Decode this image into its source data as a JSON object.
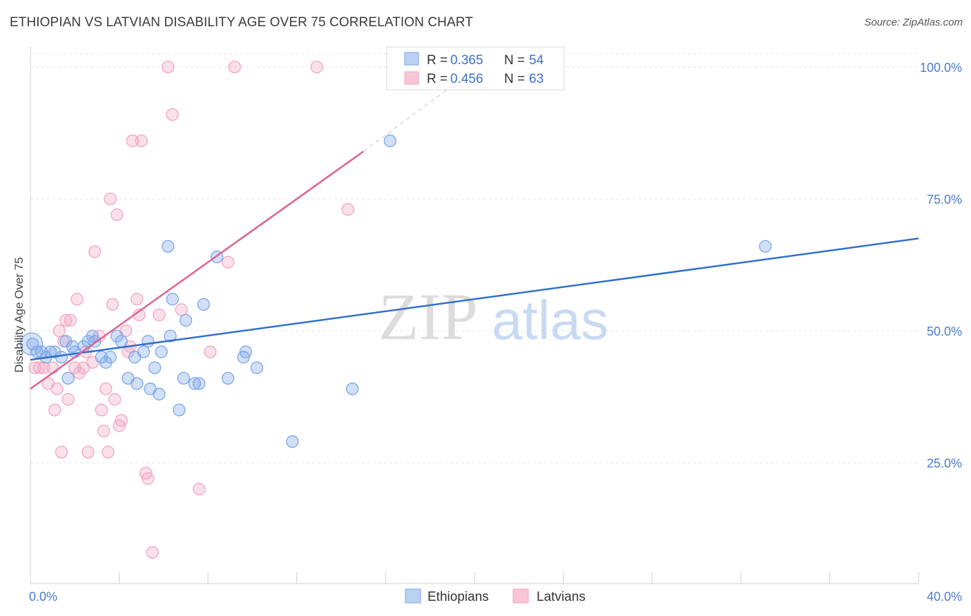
{
  "title": "ETHIOPIAN VS LATVIAN DISABILITY AGE OVER 75 CORRELATION CHART",
  "source": "Source: ZipAtlas.com",
  "watermark": {
    "zip": "ZIP",
    "atlas": "atlas"
  },
  "colors": {
    "ethiopians": "#7aa6e8",
    "ethiopians_line": "#2f6fcf",
    "latvians": "#f2a6bf",
    "latvians_line": "#e0608e",
    "tick_text": "#4a7bd0"
  },
  "legend": {
    "r_label": "R =",
    "n_label": "N =",
    "rows": [
      {
        "r": "0.365",
        "n": "54"
      },
      {
        "r": "0.456",
        "n": "63"
      }
    ]
  },
  "chart_data": {
    "type": "scatter",
    "title": "ETHIOPIAN VS LATVIAN DISABILITY AGE OVER 75 CORRELATION CHART",
    "xlabel": "",
    "ylabel": "Disability Age Over 75",
    "xlim": [
      0,
      40
    ],
    "ylim": [
      0,
      105
    ],
    "x_tick_labels": [
      "0.0%",
      "40.0%"
    ],
    "y_ticks": [
      25,
      50,
      75,
      100
    ],
    "y_tick_labels": [
      "25.0%",
      "50.0%",
      "75.0%",
      "100.0%"
    ],
    "grid": true,
    "legend_position": "top-center",
    "series": [
      {
        "name": "Ethiopians",
        "r": 0.365,
        "n": 54,
        "trend": {
          "x0": 0,
          "y0": 44.5,
          "x1": 40,
          "y1": 67.5
        },
        "points": [
          [
            0.1,
            47.5
          ],
          [
            0.3,
            46
          ],
          [
            0.5,
            46
          ],
          [
            0.7,
            45
          ],
          [
            0.9,
            46
          ],
          [
            1.1,
            46
          ],
          [
            1.4,
            45
          ],
          [
            1.6,
            48
          ],
          [
            1.7,
            41
          ],
          [
            1.9,
            47
          ],
          [
            2.0,
            46
          ],
          [
            2.4,
            47
          ],
          [
            2.6,
            48
          ],
          [
            2.8,
            49
          ],
          [
            2.9,
            48
          ],
          [
            3.2,
            45
          ],
          [
            3.4,
            44
          ],
          [
            3.6,
            45
          ],
          [
            3.9,
            49
          ],
          [
            4.1,
            48
          ],
          [
            4.4,
            41
          ],
          [
            4.7,
            45
          ],
          [
            4.8,
            40
          ],
          [
            5.1,
            46
          ],
          [
            5.3,
            48
          ],
          [
            5.4,
            39
          ],
          [
            5.6,
            43
          ],
          [
            5.8,
            38
          ],
          [
            5.9,
            46
          ],
          [
            6.2,
            66
          ],
          [
            6.3,
            49
          ],
          [
            6.4,
            56
          ],
          [
            6.7,
            35
          ],
          [
            6.9,
            41
          ],
          [
            7.0,
            52
          ],
          [
            7.4,
            40
          ],
          [
            7.6,
            40
          ],
          [
            7.8,
            55
          ],
          [
            8.4,
            64
          ],
          [
            8.9,
            41
          ],
          [
            9.6,
            45
          ],
          [
            9.7,
            46
          ],
          [
            10.2,
            43
          ],
          [
            11.8,
            29
          ],
          [
            14.5,
            39
          ],
          [
            16.2,
            86
          ],
          [
            33.1,
            66
          ]
        ]
      },
      {
        "name": "Latvians",
        "r": 0.456,
        "n": 63,
        "trend": {
          "x0": 0,
          "y0": 39,
          "x1": 15,
          "y1": 84,
          "dash_x1": 19.5,
          "dash_y1": 98
        },
        "points": [
          [
            0.2,
            43
          ],
          [
            0.4,
            43
          ],
          [
            0.6,
            43
          ],
          [
            0.8,
            40
          ],
          [
            1.0,
            43
          ],
          [
            1.1,
            35
          ],
          [
            1.2,
            39
          ],
          [
            1.3,
            50
          ],
          [
            1.4,
            27
          ],
          [
            1.5,
            48
          ],
          [
            1.6,
            52
          ],
          [
            1.7,
            37
          ],
          [
            1.8,
            52
          ],
          [
            2.0,
            43
          ],
          [
            2.1,
            56
          ],
          [
            2.2,
            42
          ],
          [
            2.4,
            43
          ],
          [
            2.5,
            46
          ],
          [
            2.6,
            27
          ],
          [
            2.8,
            44
          ],
          [
            2.9,
            65
          ],
          [
            3.1,
            49
          ],
          [
            3.2,
            35
          ],
          [
            3.3,
            31
          ],
          [
            3.4,
            39
          ],
          [
            3.5,
            27
          ],
          [
            3.6,
            75
          ],
          [
            3.7,
            55
          ],
          [
            3.8,
            37
          ],
          [
            3.9,
            72
          ],
          [
            4.0,
            32
          ],
          [
            4.1,
            33
          ],
          [
            4.3,
            50
          ],
          [
            4.4,
            46
          ],
          [
            4.5,
            47
          ],
          [
            4.6,
            86
          ],
          [
            4.8,
            56
          ],
          [
            4.9,
            53
          ],
          [
            5.0,
            86
          ],
          [
            5.2,
            23
          ],
          [
            5.3,
            22
          ],
          [
            5.5,
            8
          ],
          [
            5.8,
            53
          ],
          [
            6.2,
            100
          ],
          [
            6.4,
            91
          ],
          [
            6.8,
            54
          ],
          [
            7.6,
            20
          ],
          [
            8.1,
            46
          ],
          [
            8.9,
            63
          ],
          [
            9.2,
            100
          ],
          [
            12.9,
            100
          ],
          [
            14.3,
            73
          ]
        ]
      }
    ]
  },
  "bottom_legend": [
    "Ethiopians",
    "Latvians"
  ]
}
